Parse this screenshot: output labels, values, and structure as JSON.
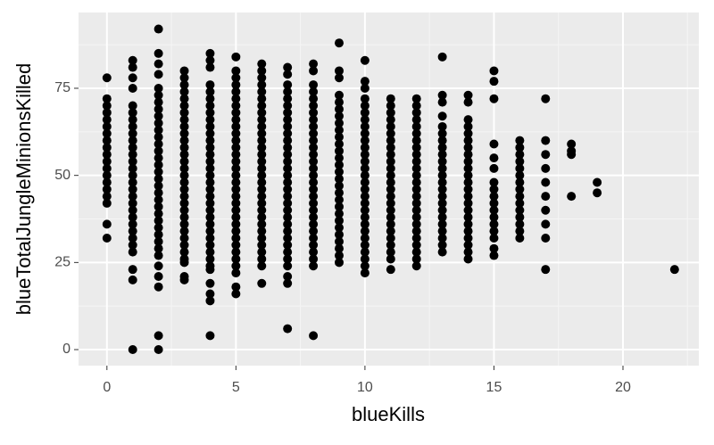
{
  "chart_data": {
    "type": "scatter",
    "x_label": "blueKills",
    "y_label": "blueTotalJungleMinionsKilled",
    "x": [
      0,
      1,
      2,
      3,
      4,
      5,
      6,
      7,
      8,
      9,
      10,
      11,
      12,
      13,
      14,
      15,
      16,
      17,
      18,
      19,
      22
    ],
    "values": [
      [
        32,
        36,
        42,
        44,
        46,
        48,
        50,
        52,
        54,
        56,
        58,
        60,
        62,
        64,
        66,
        68,
        70,
        72,
        78
      ],
      [
        0,
        20,
        23,
        28,
        30,
        32,
        34,
        36,
        38,
        40,
        42,
        44,
        46,
        48,
        50,
        52,
        54,
        56,
        58,
        60,
        62,
        64,
        66,
        68,
        70,
        75,
        78,
        81,
        83
      ],
      [
        0,
        4,
        18,
        21,
        24,
        27,
        29,
        31,
        33,
        35,
        37,
        39,
        41,
        43,
        45,
        47,
        49,
        51,
        53,
        55,
        57,
        59,
        61,
        63,
        65,
        67,
        69,
        71,
        73,
        75,
        79,
        82,
        85,
        92
      ],
      [
        20,
        21,
        25,
        26,
        28,
        30,
        32,
        34,
        36,
        38,
        40,
        42,
        44,
        46,
        48,
        50,
        52,
        54,
        56,
        58,
        60,
        62,
        64,
        66,
        68,
        70,
        72,
        74,
        76,
        78,
        80
      ],
      [
        4,
        14,
        16,
        19,
        23,
        24,
        26,
        28,
        30,
        32,
        34,
        36,
        38,
        40,
        42,
        44,
        46,
        48,
        50,
        52,
        54,
        56,
        58,
        60,
        62,
        64,
        66,
        68,
        70,
        72,
        74,
        76,
        81,
        83,
        85
      ],
      [
        16,
        18,
        22,
        24,
        26,
        28,
        30,
        32,
        34,
        36,
        38,
        40,
        42,
        44,
        46,
        48,
        50,
        52,
        54,
        56,
        58,
        60,
        62,
        64,
        66,
        68,
        70,
        72,
        74,
        76,
        78,
        80,
        84
      ],
      [
        19,
        24,
        26,
        28,
        30,
        32,
        34,
        36,
        38,
        40,
        42,
        44,
        46,
        48,
        50,
        52,
        54,
        56,
        58,
        60,
        62,
        64,
        66,
        68,
        70,
        72,
        74,
        76,
        78,
        80,
        82
      ],
      [
        6,
        19,
        21,
        24,
        26,
        28,
        30,
        32,
        34,
        36,
        38,
        40,
        42,
        44,
        46,
        48,
        50,
        52,
        54,
        56,
        58,
        60,
        62,
        64,
        66,
        68,
        70,
        72,
        74,
        76,
        79,
        81
      ],
      [
        4,
        24,
        26,
        28,
        30,
        32,
        34,
        36,
        38,
        40,
        42,
        44,
        46,
        48,
        50,
        52,
        54,
        56,
        58,
        60,
        62,
        64,
        66,
        68,
        70,
        72,
        74,
        76,
        80,
        82
      ],
      [
        25,
        27,
        29,
        31,
        33,
        35,
        37,
        39,
        41,
        43,
        45,
        47,
        49,
        51,
        53,
        55,
        57,
        59,
        61,
        63,
        65,
        67,
        69,
        71,
        73,
        78,
        80,
        88
      ],
      [
        22,
        24,
        26,
        28,
        30,
        32,
        34,
        36,
        38,
        40,
        42,
        44,
        46,
        48,
        50,
        52,
        54,
        56,
        58,
        60,
        62,
        64,
        66,
        68,
        70,
        72,
        75,
        77,
        83
      ],
      [
        23,
        26,
        28,
        30,
        32,
        34,
        36,
        38,
        40,
        42,
        44,
        46,
        48,
        50,
        52,
        54,
        56,
        58,
        60,
        62,
        64,
        66,
        68,
        70,
        72
      ],
      [
        24,
        26,
        28,
        30,
        32,
        34,
        36,
        38,
        40,
        42,
        44,
        46,
        48,
        50,
        52,
        54,
        56,
        58,
        60,
        62,
        64,
        66,
        68,
        70,
        72
      ],
      [
        28,
        30,
        32,
        34,
        36,
        38,
        40,
        42,
        44,
        46,
        48,
        50,
        52,
        54,
        56,
        58,
        60,
        62,
        64,
        67,
        71,
        73,
        84
      ],
      [
        26,
        28,
        30,
        32,
        34,
        36,
        38,
        40,
        42,
        44,
        46,
        48,
        50,
        52,
        54,
        56,
        58,
        60,
        62,
        64,
        66,
        71,
        73
      ],
      [
        27,
        29,
        32,
        34,
        36,
        38,
        40,
        42,
        44,
        46,
        48,
        52,
        55,
        59,
        72,
        77,
        80
      ],
      [
        32,
        34,
        36,
        38,
        40,
        42,
        44,
        46,
        48,
        50,
        52,
        54,
        56,
        58,
        60
      ],
      [
        23,
        32,
        36,
        40,
        44,
        48,
        52,
        56,
        60,
        72
      ],
      [
        44,
        56,
        57,
        59
      ],
      [
        45,
        48
      ],
      [
        23
      ]
    ],
    "color": "#000000",
    "xlim": [
      -1.1,
      22.94
    ],
    "xticks": [
      0,
      5,
      10,
      15,
      20
    ],
    "ylim": [
      -4.6,
      96.75
    ],
    "yticks": [
      0,
      25,
      50,
      75
    ],
    "grid": true
  }
}
